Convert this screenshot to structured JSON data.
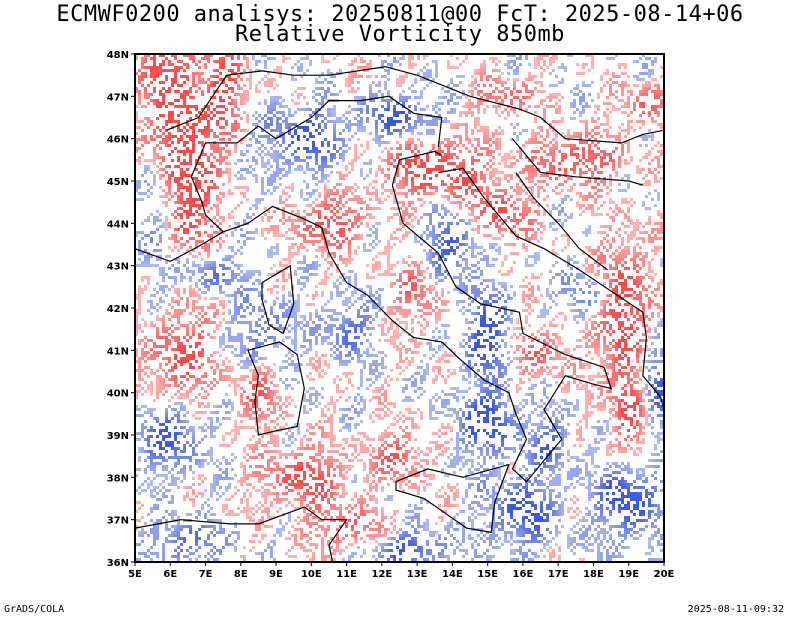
{
  "header": {
    "line1": "ECMWF0200 analisys: 20250811@00 FcT: 2025-08-14+06",
    "line2": "Relative Vorticity 850mb"
  },
  "footer": {
    "credit": "GrADS/COLA",
    "timestamp": "2025-08-11-09:32"
  },
  "map": {
    "lon_range": [
      5,
      20
    ],
    "lat_range": [
      36,
      48
    ],
    "lon_labels": [
      "5E",
      "6E",
      "7E",
      "8E",
      "9E",
      "10E",
      "11E",
      "12E",
      "13E",
      "14E",
      "15E",
      "16E",
      "17E",
      "18E",
      "19E",
      "20E"
    ],
    "lat_labels": [
      "36N",
      "37N",
      "38N",
      "39N",
      "40N",
      "41N",
      "42N",
      "43N",
      "44N",
      "45N",
      "46N",
      "47N",
      "48N"
    ],
    "colors": {
      "positive": "#ff4040",
      "negative": "#3050e0",
      "coast": "#000000"
    },
    "contours": "positive (red) and negative (blue) relative vorticity contours over Italy and surrounding seas"
  }
}
